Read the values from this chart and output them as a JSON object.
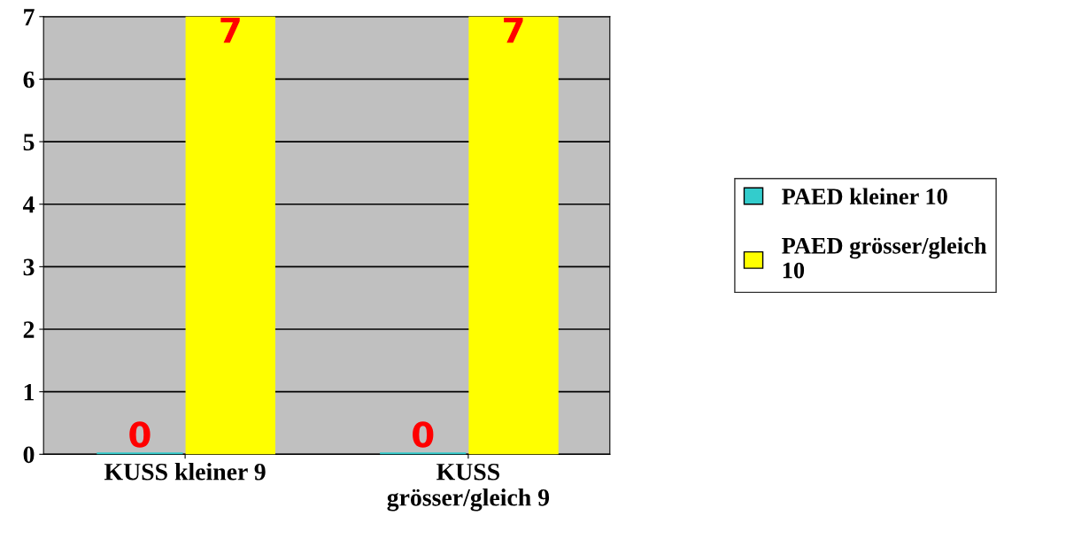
{
  "chart_data": {
    "type": "bar",
    "categories": [
      "KUSS kleiner 9",
      "KUSS\ngrösser/gleich 9"
    ],
    "series": [
      {
        "name": "PAED kleiner 10",
        "color": "#33cccc",
        "values": [
          0,
          0
        ]
      },
      {
        "name": "PAED grösser/gleich\n10",
        "color": "#ffff00",
        "values": [
          7,
          7
        ]
      }
    ],
    "ylim": [
      0,
      7
    ],
    "yticks": [
      0,
      1,
      2,
      3,
      4,
      5,
      6,
      7
    ],
    "grid": "y",
    "legend": "right",
    "data_labels": true
  }
}
